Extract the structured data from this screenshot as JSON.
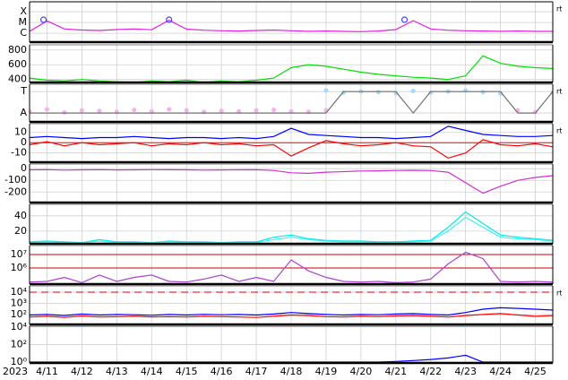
{
  "chart_data": [
    {
      "type": "line",
      "log": true,
      "right_label": "rt",
      "x": [
        11,
        11.5,
        12,
        12.5,
        13,
        13.5,
        14,
        14.5,
        15,
        15.5,
        16,
        16.5,
        17,
        17.5,
        18,
        18.5,
        19,
        19.5,
        20,
        20.5,
        21,
        21.5,
        22,
        22.5,
        23,
        23.5,
        24,
        24.5,
        25,
        25.5,
        26
      ],
      "xlim": [
        11,
        26
      ],
      "ylim": [
        1.5e-07,
        0.00083
      ],
      "yticks": [
        {
          "value": 0.0001,
          "label": "X"
        },
        {
          "value": 1e-05,
          "label": "M"
        },
        {
          "value": 1e-06,
          "label": "C"
        }
      ],
      "series": [
        {
          "color": "#e020e0",
          "mode": "line",
          "values": [
            1.5e-06,
            1.4e-05,
            2.5e-06,
            2e-06,
            1.8e-06,
            2.2e-06,
            2.5e-06,
            2.1e-06,
            1.6e-05,
            2.4e-06,
            1.9e-06,
            1.7e-06,
            1.6e-06,
            1.8e-06,
            2e-06,
            1.7e-06,
            1.5e-06,
            1.6e-06,
            1.5e-06,
            1.4e-06,
            1.6e-06,
            2.2e-06,
            1.5e-05,
            2.5e-06,
            1.9e-06,
            1.7e-06,
            1.6e-06,
            1.5e-06,
            1.6e-06,
            1.5e-06,
            1.5e-06
          ]
        },
        {
          "color": "#4040ff",
          "mode": "open_markers",
          "x": [
            11.4,
            15,
            21.75
          ],
          "values": [
            1.8e-05,
            1.8e-05,
            1.8e-05
          ]
        }
      ]
    },
    {
      "type": "line",
      "log": false,
      "x": [
        11,
        11.5,
        12,
        12.5,
        13,
        13.5,
        14,
        14.5,
        15,
        15.5,
        16,
        16.5,
        17,
        17.5,
        18,
        18.5,
        19,
        19.5,
        20,
        20.5,
        21,
        21.5,
        22,
        22.5,
        23,
        23.5,
        24,
        24.5,
        25,
        25.5,
        26
      ],
      "xlim": [
        11,
        26
      ],
      "ylim": [
        360,
        870
      ],
      "yticks": [
        800,
        600,
        400
      ],
      "series": [
        {
          "color": "#00e000",
          "mode": "line",
          "values": [
            420,
            390,
            380,
            400,
            380,
            370,
            360,
            380,
            370,
            390,
            360,
            380,
            370,
            390,
            420,
            560,
            600,
            580,
            540,
            500,
            470,
            450,
            430,
            420,
            400,
            450,
            720,
            620,
            580,
            560,
            550
          ]
        }
      ]
    },
    {
      "type": "line",
      "log": false,
      "right_label": "rt",
      "x": [
        11,
        11.5,
        12,
        12.5,
        13,
        13.5,
        14,
        14.5,
        15,
        15.5,
        16,
        16.5,
        17,
        17.5,
        18,
        18.5,
        19,
        19.5,
        20,
        20.5,
        21,
        21.5,
        22,
        22.5,
        23,
        23.5,
        24,
        24.5,
        25,
        25.5,
        26
      ],
      "xlim": [
        11,
        26
      ],
      "ylim": [
        0,
        360
      ],
      "yticks": [
        {
          "value": 290,
          "label": "T"
        },
        {
          "value": 85,
          "label": "A"
        }
      ],
      "series": [
        {
          "color": "#f5b0ee",
          "mode": "markers",
          "values": [
            100,
            120,
            90,
            110,
            105,
            95,
            115,
            100,
            120,
            110,
            95,
            105,
            100,
            110,
            115,
            100,
            95,
            110,
            null,
            null,
            null,
            null,
            null,
            null,
            null,
            null,
            null,
            null,
            110,
            95,
            null
          ]
        },
        {
          "color": "#a0dcff",
          "mode": "markers",
          "values": [
            null,
            null,
            null,
            null,
            null,
            null,
            null,
            null,
            null,
            null,
            null,
            null,
            null,
            null,
            null,
            null,
            null,
            300,
            280,
            290,
            285,
            275,
            295,
            280,
            290,
            300,
            285,
            270,
            null,
            null,
            280
          ]
        },
        {
          "color": "#707070",
          "mode": "line",
          "values": [
            85,
            85,
            85,
            85,
            85,
            85,
            85,
            85,
            85,
            85,
            85,
            85,
            85,
            85,
            85,
            85,
            85,
            85,
            290,
            290,
            290,
            290,
            85,
            290,
            290,
            290,
            290,
            290,
            85,
            85,
            290
          ]
        }
      ]
    },
    {
      "type": "line",
      "log": false,
      "right_label": "rt",
      "x": [
        11,
        11.5,
        12,
        12.5,
        13,
        13.5,
        14,
        14.5,
        15,
        15.5,
        16,
        16.5,
        17,
        17.5,
        18,
        18.5,
        19,
        19.5,
        20,
        20.5,
        21,
        21.5,
        22,
        22.5,
        23,
        23.5,
        24,
        24.5,
        25,
        25.5,
        26
      ],
      "xlim": [
        11,
        26
      ],
      "ylim": [
        -19,
        18.5
      ],
      "yticks": [
        10,
        0,
        -10
      ],
      "ref_lines": [
        {
          "value": 0,
          "color": "#ff0000"
        }
      ],
      "series": [
        {
          "color": "#0000ff",
          "mode": "line",
          "values": [
            5,
            6,
            5,
            4,
            5,
            5,
            6,
            5,
            4,
            5,
            5,
            4,
            5,
            4,
            6,
            14,
            8,
            7,
            6,
            5,
            5,
            4,
            5,
            6,
            16,
            12,
            8,
            7,
            6,
            6,
            7
          ]
        },
        {
          "color": "#ff0000",
          "mode": "line",
          "values": [
            -2,
            1,
            -3,
            0,
            -2,
            -1,
            0,
            -3,
            -1,
            -2,
            0,
            -2,
            -1,
            -3,
            -2,
            -13,
            -5,
            2,
            -1,
            -3,
            -2,
            0,
            -3,
            -4,
            -15,
            -10,
            3,
            -2,
            -3,
            -1,
            -4
          ]
        }
      ]
    },
    {
      "type": "line",
      "log": false,
      "x": [
        11,
        11.5,
        12,
        12.5,
        13,
        13.5,
        14,
        14.5,
        15,
        15.5,
        16,
        16.5,
        17,
        17.5,
        18,
        18.5,
        19,
        19.5,
        20,
        20.5,
        21,
        21.5,
        22,
        22.5,
        23,
        23.5,
        24,
        24.5,
        25,
        25.5,
        26
      ],
      "xlim": [
        11,
        26
      ],
      "ylim": [
        -290,
        40
      ],
      "yticks": [
        0,
        -100,
        -200
      ],
      "series": [
        {
          "color": "#d030d0",
          "mode": "line",
          "values": [
            -10,
            -8,
            -12,
            -10,
            -9,
            -11,
            -10,
            -8,
            -9,
            -10,
            -12,
            -11,
            -10,
            -9,
            -15,
            -35,
            -40,
            -30,
            -25,
            -20,
            -18,
            -15,
            -14,
            -16,
            -30,
            -120,
            -210,
            -150,
            -100,
            -75,
            -60
          ]
        }
      ]
    },
    {
      "type": "line",
      "log": false,
      "x": [
        11,
        11.5,
        12,
        12.5,
        13,
        13.5,
        14,
        14.5,
        15,
        15.5,
        16,
        16.5,
        17,
        17.5,
        18,
        18.5,
        19,
        19.5,
        20,
        20.5,
        21,
        21.5,
        22,
        22.5,
        23,
        23.5,
        24,
        24.5,
        25,
        25.5,
        26
      ],
      "xlim": [
        11,
        26
      ],
      "ylim": [
        3.5,
        55
      ],
      "yticks": [
        40,
        20
      ],
      "series": [
        {
          "color": "#00e8e8",
          "mode": "line",
          "values": [
            6,
            7,
            6,
            5,
            9,
            6,
            6,
            5,
            7,
            6,
            6,
            5,
            6,
            6,
            12,
            15,
            10,
            8,
            7,
            7,
            6,
            6,
            7,
            8,
            25,
            45,
            30,
            15,
            12,
            10,
            8
          ]
        },
        {
          "color": "#40f0f0",
          "mode": "line",
          "values": [
            5,
            6,
            5,
            5,
            7,
            5,
            5,
            5,
            6,
            5,
            5,
            5,
            5,
            5,
            9,
            12,
            9,
            7,
            6,
            6,
            5,
            5,
            6,
            7,
            20,
            38,
            25,
            12,
            10,
            9,
            7
          ]
        }
      ]
    },
    {
      "type": "line",
      "log": true,
      "x": [
        11,
        11.5,
        12,
        12.5,
        13,
        13.5,
        14,
        14.5,
        15,
        15.5,
        16,
        16.5,
        17,
        17.5,
        18,
        18.5,
        19,
        19.5,
        20,
        20.5,
        21,
        21.5,
        22,
        22.5,
        23,
        23.5,
        24,
        24.5,
        25,
        25.5,
        26
      ],
      "xlim": [
        11,
        26
      ],
      "ylim": [
        63000,
        47000000
      ],
      "yticks": [
        {
          "value": 10000000,
          "label": "10⁷"
        },
        {
          "value": 1000000,
          "label": "10⁶"
        }
      ],
      "ref_lines": [
        {
          "value": 10000000,
          "color": "#cc0000"
        },
        {
          "value": 1000000,
          "color": "#cc0000"
        }
      ],
      "series": [
        {
          "color": "#b040d0",
          "mode": "line",
          "values": [
            90000,
            100000,
            200000,
            80000,
            300000,
            100000,
            200000,
            300000,
            100000,
            90000,
            150000,
            300000,
            100000,
            200000,
            100000,
            4000000,
            600000,
            200000,
            100000,
            90000,
            100000,
            80000,
            90000,
            150000,
            2000000,
            15000000,
            5000000,
            100000,
            90000,
            100000,
            90000
          ]
        }
      ]
    },
    {
      "type": "line",
      "log": true,
      "right_label": "rt",
      "x": [
        11,
        11.5,
        12,
        12.5,
        13,
        13.5,
        14,
        14.5,
        15,
        15.5,
        16,
        16.5,
        17,
        17.5,
        18,
        18.5,
        19,
        19.5,
        20,
        20.5,
        21,
        21.5,
        22,
        22.5,
        23,
        23.5,
        24,
        24.5,
        25,
        25.5,
        26
      ],
      "xlim": [
        11,
        26
      ],
      "ylim": [
        13,
        36000
      ],
      "yticks": [
        {
          "value": 10000,
          "label": "10⁴"
        },
        {
          "value": 1000,
          "label": "10³"
        },
        {
          "value": 100,
          "label": "10²"
        }
      ],
      "ref_lines": [
        {
          "value": 10000,
          "color": "#e00000",
          "dashed": true
        }
      ],
      "series": [
        {
          "color": "#0000ff",
          "mode": "line",
          "values": [
            90,
            100,
            80,
            110,
            90,
            100,
            95,
            85,
            100,
            90,
            105,
            95,
            100,
            90,
            110,
            150,
            120,
            100,
            90,
            100,
            95,
            110,
            120,
            100,
            90,
            150,
            300,
            400,
            350,
            300,
            250
          ]
        },
        {
          "color": "#ff0000",
          "mode": "line",
          "values": [
            60,
            70,
            55,
            75,
            60,
            65,
            70,
            60,
            65,
            60,
            70,
            65,
            60,
            55,
            70,
            90,
            80,
            65,
            60,
            70,
            65,
            75,
            80,
            70,
            60,
            80,
            100,
            120,
            90,
            70,
            80
          ]
        }
      ]
    },
    {
      "type": "line",
      "log": true,
      "x_label": "2023",
      "x": [
        11,
        11.5,
        12,
        12.5,
        13,
        13.5,
        14,
        14.5,
        15,
        15.5,
        16,
        16.5,
        17,
        17.5,
        18,
        18.5,
        19,
        19.5,
        20,
        20.5,
        21,
        21.5,
        22,
        22.5,
        23,
        23.5,
        24,
        24.5,
        25,
        25.5,
        26
      ],
      "xlim": [
        11,
        26
      ],
      "ylim": [
        0.8,
        12000
      ],
      "xticks": [
        {
          "value": 11.5,
          "label": "4/11"
        },
        {
          "value": 12.5,
          "label": "4/12"
        },
        {
          "value": 13.5,
          "label": "4/13"
        },
        {
          "value": 14.5,
          "label": "4/14"
        },
        {
          "value": 15.5,
          "label": "4/15"
        },
        {
          "value": 16.5,
          "label": "4/16"
        },
        {
          "value": 17.5,
          "label": "4/17"
        },
        {
          "value": 18.5,
          "label": "4/18"
        },
        {
          "value": 19.5,
          "label": "4/19"
        },
        {
          "value": 20.5,
          "label": "4/20"
        },
        {
          "value": 21.5,
          "label": "4/21"
        },
        {
          "value": 22.5,
          "label": "4/22"
        },
        {
          "value": 23.5,
          "label": "4/23"
        },
        {
          "value": 24.5,
          "label": "4/24"
        },
        {
          "value": 25.5,
          "label": "4/25"
        }
      ],
      "yticks": [
        {
          "value": 10000,
          "label": "10⁴"
        },
        {
          "value": 100,
          "label": "10²"
        },
        {
          "value": 1,
          "label": "10⁰"
        }
      ],
      "series": [
        {
          "color": "#0000ff",
          "mode": "line",
          "values": [
            1,
            1,
            1,
            1,
            1,
            1,
            1,
            1,
            1,
            1,
            1,
            1,
            1,
            1,
            1,
            1,
            1,
            1,
            1,
            1,
            1,
            1.2,
            1.5,
            2,
            3,
            6,
            1,
            1,
            1,
            1,
            1
          ]
        }
      ]
    }
  ]
}
